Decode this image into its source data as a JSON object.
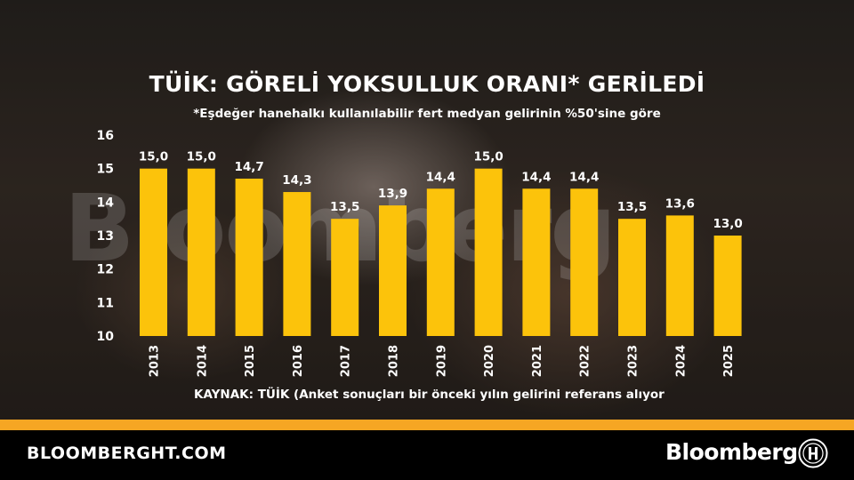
{
  "title": "TÜİK: GÖRELİ YOKSULLUK ORANI* GERİLEDİ",
  "subtitle": "*Eşdeğer hanehalkı kullanılabilir fert medyan gelirinin %50'sine göre",
  "source": "KAYNAK: TÜİK (Anket sonuçları bir önceki yılın gelirini referans alıyor",
  "watermark": "Bloomberg",
  "footer": {
    "url": "BLOOMBERGHT.COM",
    "logo": "Bloomberg"
  },
  "colors": {
    "bar": "#fcc30b",
    "accent_stripe": "#f6a623",
    "footer_bg": "#000000",
    "text": "#ffffff"
  },
  "chart_data": {
    "type": "bar",
    "categories": [
      "2013",
      "2014",
      "2015",
      "2016",
      "2017",
      "2018",
      "2019",
      "2020",
      "2021",
      "2022",
      "2023",
      "2024",
      "2025"
    ],
    "values": [
      15.0,
      15.0,
      14.7,
      14.3,
      13.5,
      13.9,
      14.4,
      15.0,
      14.4,
      14.4,
      13.5,
      13.6,
      13.0
    ],
    "value_labels": [
      "15,0",
      "15,0",
      "14,7",
      "14,3",
      "13,5",
      "13,9",
      "14,4",
      "15,0",
      "14,4",
      "14,4",
      "13,5",
      "13,6",
      "13,0"
    ],
    "yticks": [
      "10",
      "11",
      "12",
      "13",
      "14",
      "15",
      "16"
    ],
    "ylim": [
      10,
      16
    ],
    "grid": false,
    "legend": "none",
    "title": "TÜİK: GÖRELİ YOKSULLUK ORANI* GERİLEDİ",
    "xlabel": "",
    "ylabel": ""
  }
}
